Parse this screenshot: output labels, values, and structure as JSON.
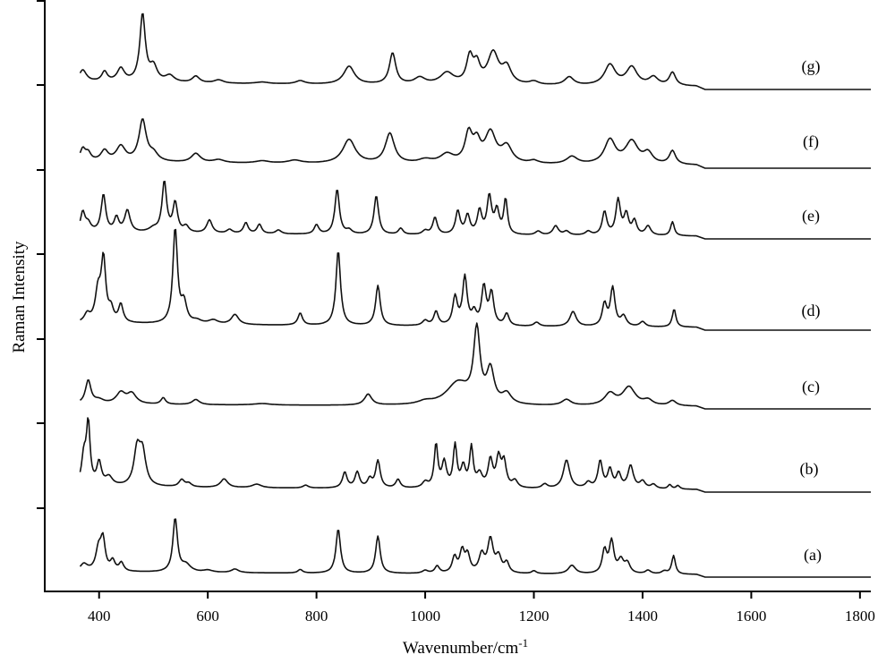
{
  "chart_data": {
    "type": "line",
    "xlabel": "Wavenumber/cm",
    "xlabel_superscript": "-1",
    "ylabel": "Raman Intensity",
    "xlim": [
      300,
      1820
    ],
    "x_ticks": [
      400,
      600,
      800,
      1000,
      1200,
      1400,
      1600,
      1800
    ],
    "y_tick_count": 7,
    "x_range_measured": [
      365,
      1820
    ],
    "series": [
      {
        "name": "(a)",
        "baseline": 0.05,
        "peaks": [
          [
            372,
            0.1,
            8
          ],
          [
            399,
            0.3,
            6
          ],
          [
            407,
            0.42,
            5
          ],
          [
            425,
            0.14,
            5
          ],
          [
            441,
            0.12,
            5
          ],
          [
            540,
            0.75,
            5
          ],
          [
            560,
            0.1,
            10
          ],
          [
            600,
            0.03,
            10
          ],
          [
            650,
            0.05,
            8
          ],
          [
            770,
            0.05,
            5
          ],
          [
            840,
            0.62,
            5
          ],
          [
            913,
            0.52,
            5
          ],
          [
            1000,
            0.04,
            6
          ],
          [
            1022,
            0.1,
            5
          ],
          [
            1054,
            0.22,
            5
          ],
          [
            1068,
            0.3,
            5
          ],
          [
            1078,
            0.24,
            5
          ],
          [
            1104,
            0.25,
            6
          ],
          [
            1120,
            0.46,
            6
          ],
          [
            1135,
            0.22,
            6
          ],
          [
            1150,
            0.14,
            5
          ],
          [
            1200,
            0.04,
            5
          ],
          [
            1270,
            0.12,
            8
          ],
          [
            1330,
            0.32,
            5
          ],
          [
            1343,
            0.44,
            5
          ],
          [
            1360,
            0.18,
            6
          ],
          [
            1372,
            0.14,
            6
          ],
          [
            1410,
            0.05,
            6
          ],
          [
            1440,
            0.04,
            6
          ],
          [
            1457,
            0.26,
            4
          ]
        ]
      },
      {
        "name": "(b)",
        "baseline": 0.05,
        "peaks": [
          [
            372,
            0.4,
            5
          ],
          [
            380,
            0.85,
            4
          ],
          [
            400,
            0.32,
            5
          ],
          [
            418,
            0.12,
            8
          ],
          [
            470,
            0.5,
            7
          ],
          [
            480,
            0.45,
            7
          ],
          [
            552,
            0.1,
            6
          ],
          [
            565,
            0.05,
            6
          ],
          [
            630,
            0.12,
            8
          ],
          [
            690,
            0.05,
            10
          ],
          [
            780,
            0.04,
            6
          ],
          [
            852,
            0.22,
            5
          ],
          [
            875,
            0.22,
            5
          ],
          [
            898,
            0.12,
            5
          ],
          [
            913,
            0.38,
            5
          ],
          [
            950,
            0.12,
            5
          ],
          [
            1000,
            0.08,
            6
          ],
          [
            1020,
            0.6,
            4
          ],
          [
            1035,
            0.35,
            5
          ],
          [
            1055,
            0.58,
            4
          ],
          [
            1070,
            0.28,
            5
          ],
          [
            1085,
            0.55,
            4
          ],
          [
            1100,
            0.18,
            6
          ],
          [
            1120,
            0.38,
            5
          ],
          [
            1135,
            0.4,
            5
          ],
          [
            1145,
            0.35,
            5
          ],
          [
            1165,
            0.1,
            6
          ],
          [
            1220,
            0.06,
            6
          ],
          [
            1260,
            0.4,
            7
          ],
          [
            1300,
            0.08,
            6
          ],
          [
            1322,
            0.38,
            5
          ],
          [
            1340,
            0.26,
            5
          ],
          [
            1356,
            0.2,
            5
          ],
          [
            1378,
            0.32,
            6
          ],
          [
            1400,
            0.1,
            6
          ],
          [
            1420,
            0.06,
            6
          ],
          [
            1450,
            0.06,
            4
          ],
          [
            1465,
            0.05,
            4
          ]
        ]
      },
      {
        "name": "(c)",
        "baseline": 0.04,
        "peaks": [
          [
            380,
            0.32,
            6
          ],
          [
            400,
            0.05,
            10
          ],
          [
            440,
            0.15,
            10
          ],
          [
            460,
            0.14,
            10
          ],
          [
            518,
            0.09,
            5
          ],
          [
            578,
            0.07,
            8
          ],
          [
            700,
            0.02,
            20
          ],
          [
            895,
            0.15,
            8
          ],
          [
            1000,
            0.04,
            15
          ],
          [
            1060,
            0.3,
            25
          ],
          [
            1095,
            0.98,
            7
          ],
          [
            1120,
            0.45,
            8
          ],
          [
            1150,
            0.14,
            10
          ],
          [
            1260,
            0.08,
            10
          ],
          [
            1340,
            0.16,
            12
          ],
          [
            1375,
            0.25,
            14
          ],
          [
            1410,
            0.07,
            10
          ],
          [
            1455,
            0.07,
            8
          ]
        ]
      },
      {
        "name": "(d)",
        "baseline": 0.05,
        "peaks": [
          [
            378,
            0.08,
            6
          ],
          [
            398,
            0.3,
            6
          ],
          [
            408,
            0.62,
            5
          ],
          [
            422,
            0.12,
            5
          ],
          [
            440,
            0.18,
            5
          ],
          [
            540,
            0.95,
            5
          ],
          [
            556,
            0.2,
            6
          ],
          [
            580,
            0.03,
            10
          ],
          [
            610,
            0.04,
            10
          ],
          [
            650,
            0.1,
            8
          ],
          [
            770,
            0.12,
            5
          ],
          [
            840,
            0.75,
            5
          ],
          [
            913,
            0.4,
            5
          ],
          [
            1000,
            0.05,
            6
          ],
          [
            1020,
            0.14,
            5
          ],
          [
            1055,
            0.28,
            5
          ],
          [
            1073,
            0.48,
            5
          ],
          [
            1090,
            0.12,
            5
          ],
          [
            1108,
            0.38,
            5
          ],
          [
            1122,
            0.32,
            5
          ],
          [
            1150,
            0.12,
            5
          ],
          [
            1205,
            0.04,
            6
          ],
          [
            1272,
            0.15,
            7
          ],
          [
            1330,
            0.22,
            5
          ],
          [
            1345,
            0.38,
            5
          ],
          [
            1365,
            0.1,
            6
          ],
          [
            1400,
            0.05,
            6
          ],
          [
            1458,
            0.18,
            4
          ]
        ]
      },
      {
        "name": "(e)",
        "baseline": 0.06,
        "peaks": [
          [
            370,
            0.25,
            5
          ],
          [
            380,
            0.1,
            6
          ],
          [
            408,
            0.48,
            5
          ],
          [
            432,
            0.18,
            5
          ],
          [
            452,
            0.28,
            6
          ],
          [
            500,
            0.05,
            10
          ],
          [
            520,
            0.65,
            5
          ],
          [
            540,
            0.38,
            5
          ],
          [
            560,
            0.08,
            6
          ],
          [
            603,
            0.17,
            6
          ],
          [
            640,
            0.05,
            6
          ],
          [
            670,
            0.14,
            5
          ],
          [
            695,
            0.12,
            5
          ],
          [
            730,
            0.05,
            6
          ],
          [
            800,
            0.12,
            5
          ],
          [
            838,
            0.58,
            5
          ],
          [
            860,
            0.05,
            6
          ],
          [
            910,
            0.5,
            5
          ],
          [
            955,
            0.08,
            5
          ],
          [
            1000,
            0.05,
            6
          ],
          [
            1018,
            0.22,
            5
          ],
          [
            1060,
            0.3,
            5
          ],
          [
            1078,
            0.24,
            5
          ],
          [
            1100,
            0.3,
            5
          ],
          [
            1118,
            0.48,
            5
          ],
          [
            1132,
            0.3,
            5
          ],
          [
            1148,
            0.45,
            4
          ],
          [
            1208,
            0.05,
            6
          ],
          [
            1240,
            0.12,
            6
          ],
          [
            1260,
            0.05,
            6
          ],
          [
            1300,
            0.05,
            6
          ],
          [
            1330,
            0.3,
            5
          ],
          [
            1355,
            0.45,
            5
          ],
          [
            1370,
            0.26,
            5
          ],
          [
            1385,
            0.18,
            5
          ],
          [
            1410,
            0.12,
            6
          ],
          [
            1455,
            0.18,
            4
          ]
        ]
      },
      {
        "name": "(f)",
        "baseline": 0.06,
        "peaks": [
          [
            370,
            0.16,
            6
          ],
          [
            380,
            0.1,
            6
          ],
          [
            410,
            0.14,
            8
          ],
          [
            440,
            0.2,
            10
          ],
          [
            480,
            0.55,
            8
          ],
          [
            500,
            0.1,
            10
          ],
          [
            578,
            0.12,
            10
          ],
          [
            620,
            0.04,
            12
          ],
          [
            700,
            0.03,
            15
          ],
          [
            760,
            0.04,
            15
          ],
          [
            860,
            0.32,
            14
          ],
          [
            935,
            0.4,
            10
          ],
          [
            1000,
            0.05,
            15
          ],
          [
            1040,
            0.12,
            15
          ],
          [
            1080,
            0.38,
            8
          ],
          [
            1095,
            0.25,
            8
          ],
          [
            1120,
            0.4,
            12
          ],
          [
            1150,
            0.22,
            12
          ],
          [
            1200,
            0.04,
            10
          ],
          [
            1270,
            0.1,
            12
          ],
          [
            1340,
            0.32,
            12
          ],
          [
            1380,
            0.3,
            14
          ],
          [
            1410,
            0.14,
            10
          ],
          [
            1455,
            0.18,
            7
          ]
        ]
      },
      {
        "name": "(g)",
        "baseline": 0.07,
        "peaks": [
          [
            370,
            0.14,
            8
          ],
          [
            410,
            0.12,
            6
          ],
          [
            440,
            0.16,
            8
          ],
          [
            480,
            0.82,
            6
          ],
          [
            500,
            0.18,
            8
          ],
          [
            530,
            0.08,
            10
          ],
          [
            578,
            0.08,
            8
          ],
          [
            620,
            0.04,
            10
          ],
          [
            700,
            0.02,
            15
          ],
          [
            770,
            0.04,
            10
          ],
          [
            860,
            0.22,
            12
          ],
          [
            940,
            0.38,
            7
          ],
          [
            990,
            0.08,
            12
          ],
          [
            1040,
            0.14,
            15
          ],
          [
            1082,
            0.32,
            7
          ],
          [
            1095,
            0.22,
            7
          ],
          [
            1125,
            0.38,
            12
          ],
          [
            1150,
            0.2,
            10
          ],
          [
            1200,
            0.04,
            10
          ],
          [
            1265,
            0.1,
            10
          ],
          [
            1340,
            0.25,
            12
          ],
          [
            1380,
            0.22,
            12
          ],
          [
            1420,
            0.1,
            10
          ],
          [
            1455,
            0.16,
            7
          ]
        ]
      }
    ]
  }
}
